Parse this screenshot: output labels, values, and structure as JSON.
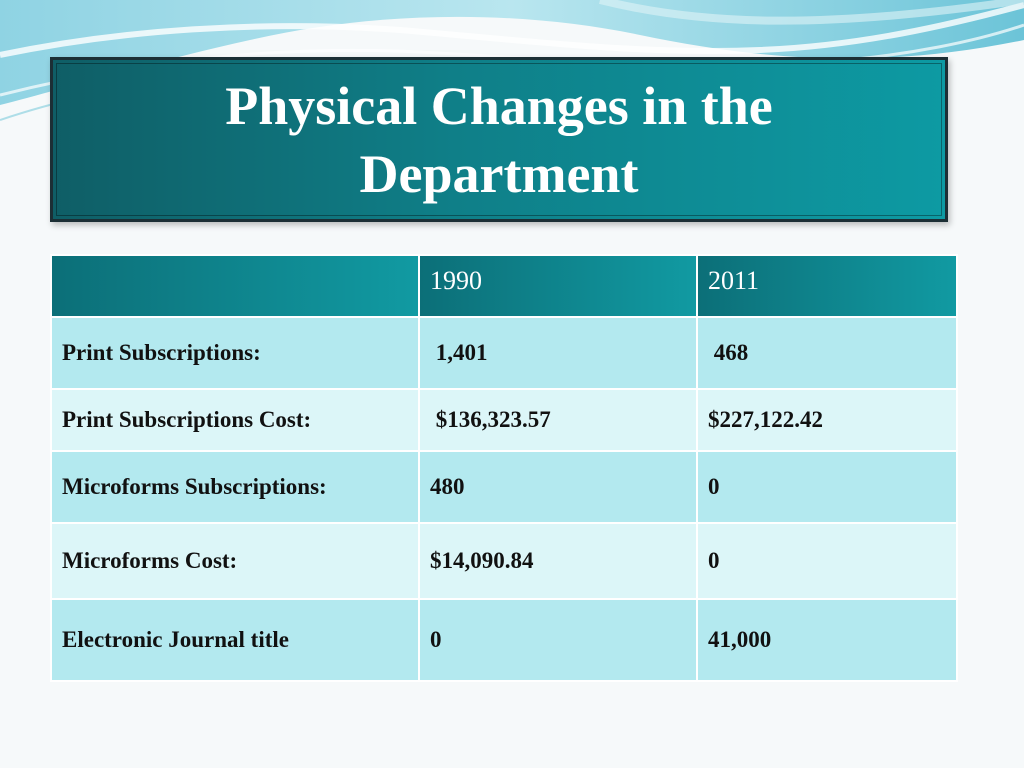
{
  "title_line1": "Physical Changes in the",
  "title_line2": "Department",
  "table": {
    "header": [
      "",
      "1990",
      "2011"
    ],
    "rows": [
      {
        "label": "Print Subscriptions:",
        "y1990": " 1,401",
        "y2011": " 468"
      },
      {
        "label": "Print Subscriptions Cost:",
        "y1990": " $136,323.57",
        "y2011": "$227,122.42"
      },
      {
        "label": "Microforms Subscriptions:",
        "y1990": "480",
        "y2011": "0"
      },
      {
        "label": "Microforms Cost:",
        "y1990": "$14,090.84",
        "y2011": "0"
      },
      {
        "label": "Electronic Journal title",
        "y1990": "0",
        "y2011": "41,000"
      }
    ]
  },
  "colors": {
    "title_bg": "#0f7f88",
    "header_bg": "#119aa2",
    "row_dark": "#b3e9ef",
    "row_light": "#dcf6f8"
  }
}
